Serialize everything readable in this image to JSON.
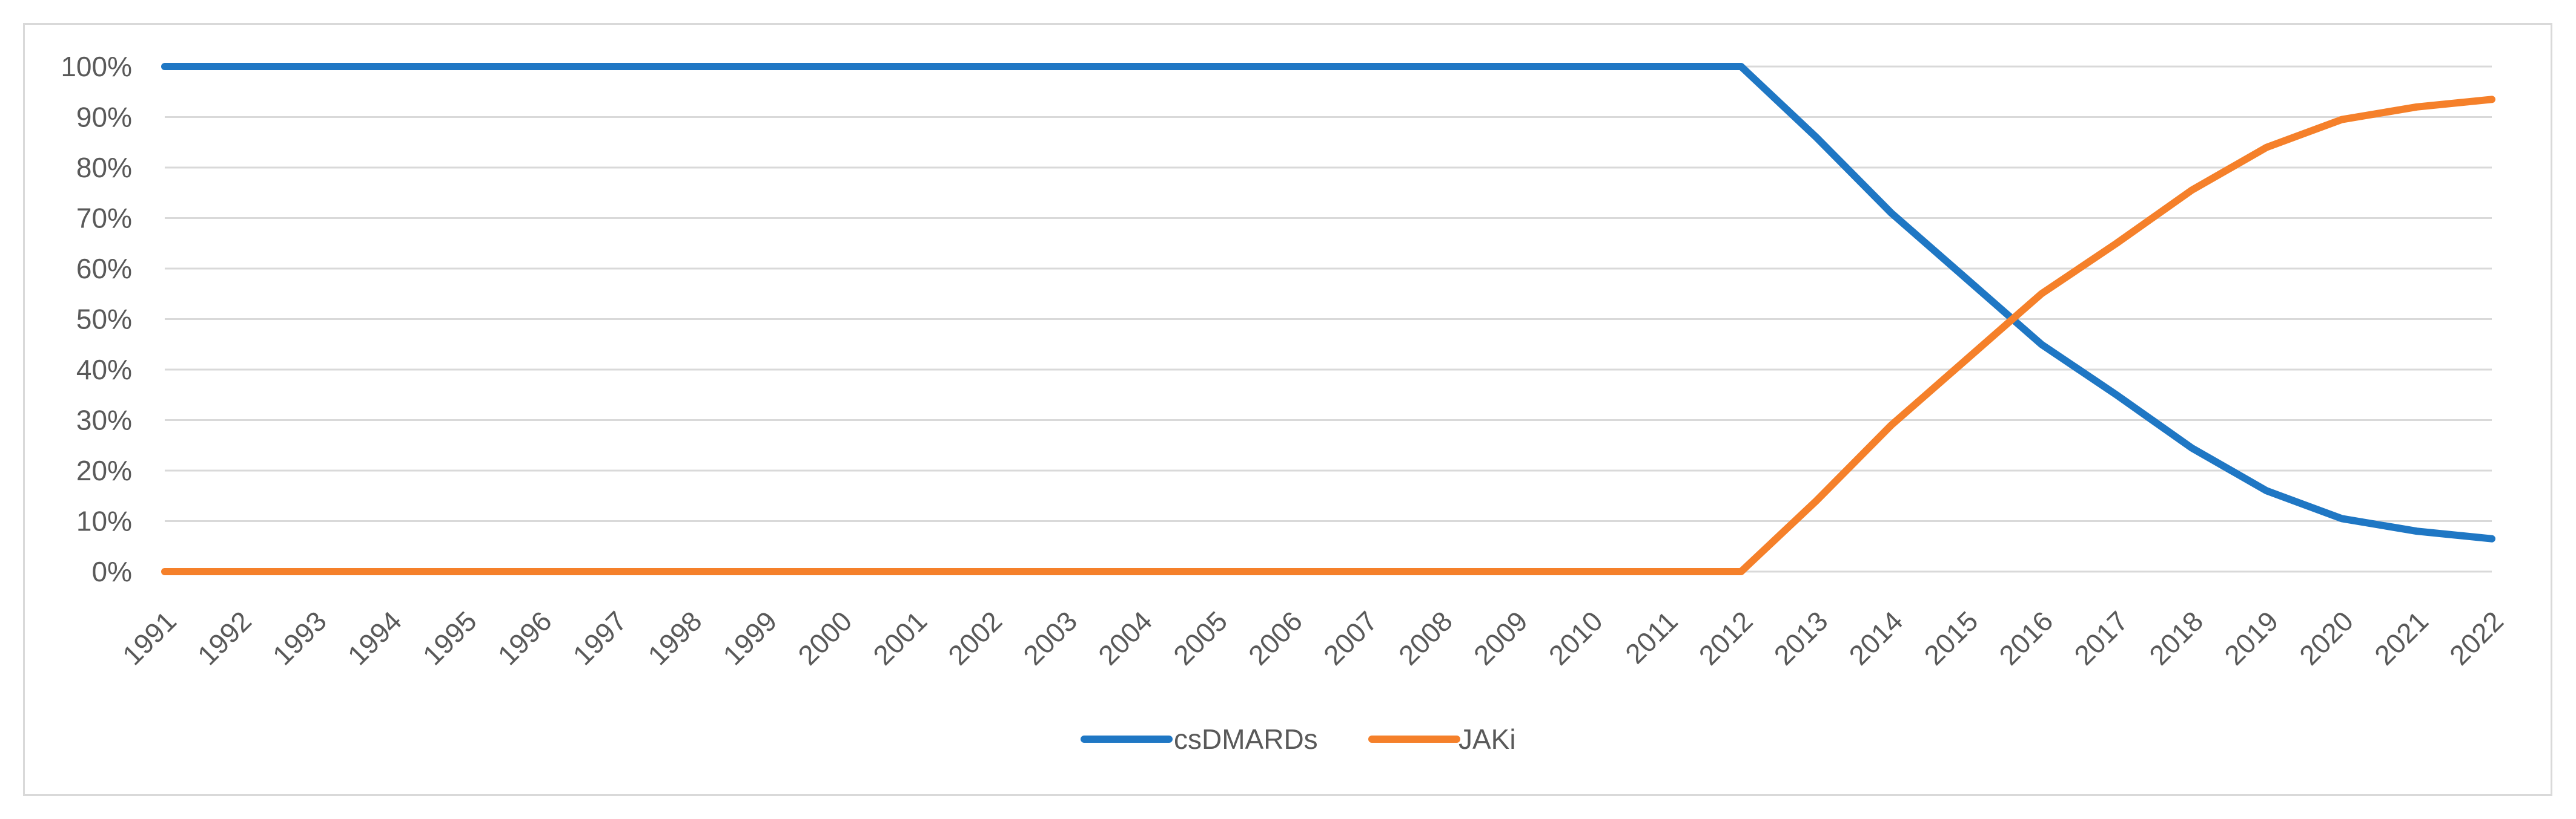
{
  "chart_data": {
    "type": "line",
    "title": "",
    "xlabel": "",
    "ylabel": "",
    "x": [
      "1991",
      "1992",
      "1993",
      "1994",
      "1995",
      "1996",
      "1997",
      "1998",
      "1999",
      "2000",
      "2001",
      "2002",
      "2003",
      "2004",
      "2005",
      "2006",
      "2007",
      "2008",
      "2009",
      "2010",
      "2011",
      "2012",
      "2013",
      "2014",
      "2015",
      "2016",
      "2017",
      "2018",
      "2019",
      "2020",
      "2021",
      "2022"
    ],
    "ylim": [
      0,
      100
    ],
    "yticks": [
      "0%",
      "10%",
      "20%",
      "30%",
      "40%",
      "50%",
      "60%",
      "70%",
      "80%",
      "90%",
      "100%"
    ],
    "grid": true,
    "legend_position": "bottom",
    "series": [
      {
        "name": "csDMARDs",
        "color": "#1f77c4",
        "values": [
          100,
          100,
          100,
          100,
          100,
          100,
          100,
          100,
          100,
          100,
          100,
          100,
          100,
          100,
          100,
          100,
          100,
          100,
          100,
          100,
          100,
          100,
          86,
          71,
          58,
          45,
          35,
          24.5,
          16,
          10.5,
          8,
          6.5
        ]
      },
      {
        "name": "JAKi",
        "color": "#f5802a",
        "values": [
          0,
          0,
          0,
          0,
          0,
          0,
          0,
          0,
          0,
          0,
          0,
          0,
          0,
          0,
          0,
          0,
          0,
          0,
          0,
          0,
          0,
          0,
          14,
          29,
          42,
          55,
          65,
          75.5,
          84,
          89.5,
          92,
          93.5
        ]
      }
    ]
  }
}
